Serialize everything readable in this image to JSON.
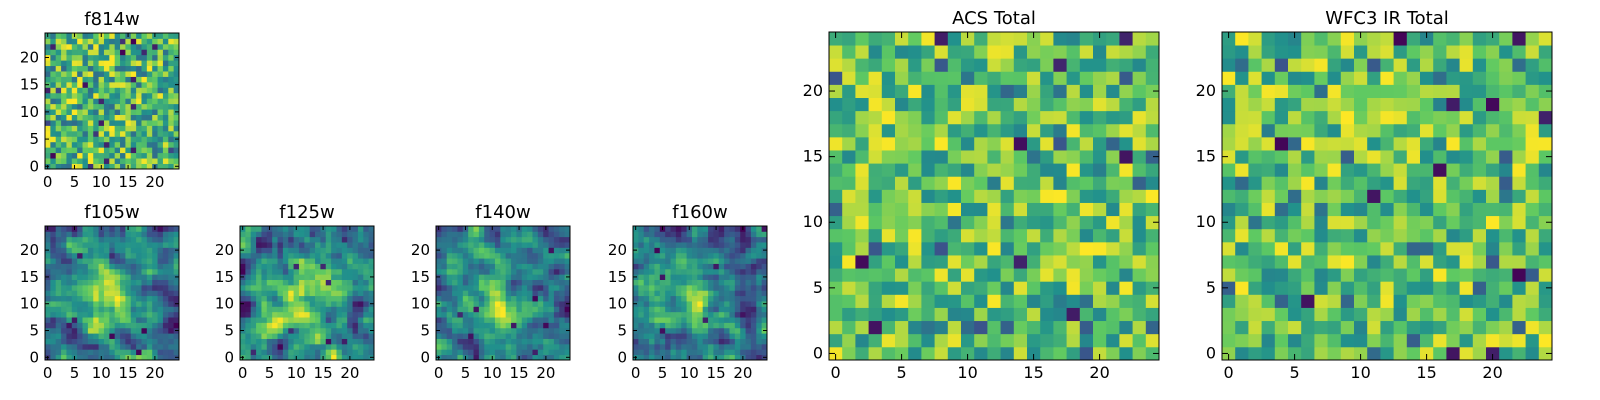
{
  "figure": {
    "grid_size": 25
  },
  "colormap": [
    "#440154",
    "#3b528b",
    "#21918c",
    "#5ec962",
    "#fde725"
  ],
  "chart_data": [
    {
      "type": "heatmap",
      "name": "f814w",
      "title": "f814w",
      "xticks": [
        0,
        5,
        10,
        15,
        20
      ],
      "yticks": [
        0,
        5,
        10,
        15,
        20
      ],
      "xlim": [
        0,
        25
      ],
      "ylim": [
        0,
        25
      ],
      "seed": 814,
      "grid_cells": 25,
      "pattern": "noise"
    },
    {
      "type": "heatmap",
      "name": "f105w",
      "title": "f105w",
      "xticks": [
        0,
        5,
        10,
        15,
        20
      ],
      "yticks": [
        0,
        5,
        10,
        15,
        20
      ],
      "xlim": [
        0,
        25
      ],
      "ylim": [
        0,
        25
      ],
      "seed": 105,
      "grid_cells": 25,
      "pattern": "smooth"
    },
    {
      "type": "heatmap",
      "name": "f125w",
      "title": "f125w",
      "xticks": [
        0,
        5,
        10,
        15,
        20
      ],
      "yticks": [
        0,
        5,
        10,
        15,
        20
      ],
      "xlim": [
        0,
        25
      ],
      "ylim": [
        0,
        25
      ],
      "seed": 125,
      "grid_cells": 25,
      "pattern": "smooth"
    },
    {
      "type": "heatmap",
      "name": "f140w",
      "title": "f140w",
      "xticks": [
        0,
        5,
        10,
        15,
        20
      ],
      "yticks": [
        0,
        5,
        10,
        15,
        20
      ],
      "xlim": [
        0,
        25
      ],
      "ylim": [
        0,
        25
      ],
      "seed": 140,
      "grid_cells": 25,
      "pattern": "smooth"
    },
    {
      "type": "heatmap",
      "name": "f160w",
      "title": "f160w",
      "xticks": [
        0,
        5,
        10,
        15,
        20
      ],
      "yticks": [
        0,
        5,
        10,
        15,
        20
      ],
      "xlim": [
        0,
        25
      ],
      "ylim": [
        0,
        25
      ],
      "seed": 160,
      "grid_cells": 25,
      "pattern": "smooth"
    },
    {
      "type": "heatmap",
      "name": "acs-total",
      "title": "ACS Total",
      "xticks": [
        0,
        5,
        10,
        15,
        20
      ],
      "yticks": [
        0,
        5,
        10,
        15,
        20
      ],
      "xlim": [
        0,
        25
      ],
      "ylim": [
        0,
        25
      ],
      "seed": 999,
      "grid_cells": 25,
      "pattern": "blocky"
    },
    {
      "type": "heatmap",
      "name": "wfc3-ir-total",
      "title": "WFC3 IR Total",
      "xticks": [
        0,
        5,
        10,
        15,
        20
      ],
      "yticks": [
        0,
        5,
        10,
        15,
        20
      ],
      "xlim": [
        0,
        25
      ],
      "ylim": [
        0,
        25
      ],
      "seed": 777,
      "grid_cells": 25,
      "pattern": "blocky"
    }
  ]
}
